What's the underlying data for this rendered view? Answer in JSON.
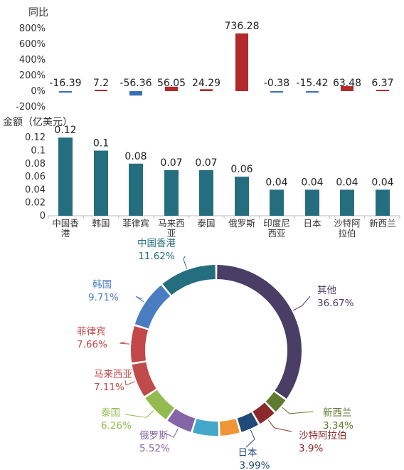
{
  "chart_data": [
    {
      "type": "bar",
      "title": "",
      "ylabel": "同比",
      "ylim": [
        -200,
        800
      ],
      "yticks": [
        "800%",
        "600%",
        "400%",
        "200%",
        "0%",
        "-200%"
      ],
      "categories": [
        "中国香港",
        "韩国",
        "菲律宾",
        "马来西亚",
        "泰国",
        "俄罗斯",
        "印度尼西亚",
        "日本",
        "沙特阿拉伯",
        "新西兰"
      ],
      "values": [
        -16.39,
        7.2,
        -56.36,
        56.05,
        24.29,
        736.28,
        -0.38,
        -15.42,
        63.48,
        6.37
      ],
      "value_labels": [
        "-16.39",
        "7.2",
        "-56.36",
        "56.05",
        "24.29",
        "736.28",
        "-0.38",
        "-15.42",
        "63.48",
        "6.37"
      ],
      "colors": {
        "positive": "#b22a2a",
        "negative": "#3a6fb7"
      }
    },
    {
      "type": "bar",
      "title": "",
      "ylabel": "金额（亿美元）",
      "ylim": [
        0,
        0.12
      ],
      "yticks": [
        "0.12",
        "0.1",
        "0.08",
        "0.06",
        "0.04",
        "0.02",
        "0"
      ],
      "categories": [
        "中国香港",
        "韩国",
        "菲律宾",
        "马来西亚",
        "泰国",
        "俄罗斯",
        "印度尼西亚",
        "日本",
        "沙特阿拉伯",
        "新西兰"
      ],
      "category_lines": [
        [
          "中国香",
          "港"
        ],
        [
          "韩国"
        ],
        [
          "菲律宾"
        ],
        [
          "马来西",
          "亚"
        ],
        [
          "泰国"
        ],
        [
          "俄罗斯"
        ],
        [
          "印度尼",
          "西亚"
        ],
        [
          "日本"
        ],
        [
          "沙特阿",
          "拉伯"
        ],
        [
          "新西兰"
        ]
      ],
      "values": [
        0.12,
        0.1,
        0.08,
        0.07,
        0.07,
        0.06,
        0.04,
        0.04,
        0.04,
        0.04
      ],
      "value_labels": [
        "0.12",
        "0.1",
        "0.08",
        "0.07",
        "0.07",
        "0.06",
        "0.04",
        "0.04",
        "0.04",
        "0.04"
      ],
      "colors": {
        "bar": "#256e80"
      }
    },
    {
      "type": "pie",
      "donut": true,
      "title": "",
      "slices": [
        {
          "name": "其他",
          "value": 36.67,
          "label": "36.67%",
          "color": "#4a3e67"
        },
        {
          "name": "新西兰",
          "value": 3.34,
          "label": "3.34%",
          "color": "#5e7b2f"
        },
        {
          "name": "沙特阿拉伯",
          "value": 3.9,
          "label": "3.9%",
          "color": "#8a2a2c"
        },
        {
          "name": "日本",
          "value": 3.99,
          "label": "3.99%",
          "color": "#224a78"
        },
        {
          "name": "",
          "value": 4.24,
          "label": "",
          "color": "#ef9535"
        },
        {
          "name": "",
          "value": 5.5,
          "label": "",
          "color": "#44a7c9"
        },
        {
          "name": "俄罗斯",
          "value": 5.52,
          "label": "5.52%",
          "color": "#8565a8"
        },
        {
          "name": "泰国",
          "value": 6.26,
          "label": "6.26%",
          "color": "#93bb4f"
        },
        {
          "name": "马来西亚",
          "value": 7.11,
          "label": "7.11%",
          "color": "#c04b4a"
        },
        {
          "name": "菲律宾",
          "value": 7.66,
          "label": "7.66%",
          "color": "#c2484a"
        },
        {
          "name": "韩国",
          "value": 9.71,
          "label": "9.71%",
          "color": "#4a7dc0"
        },
        {
          "name": "中国香港",
          "value": 11.62,
          "label": "11.62%",
          "color": "#256e80"
        }
      ]
    }
  ]
}
